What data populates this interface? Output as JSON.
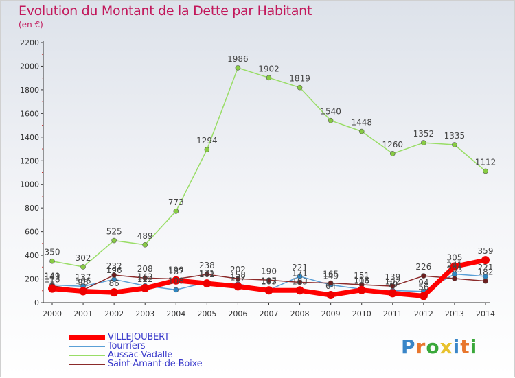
{
  "header": {
    "title": "Evolution du Montant de la Dette par Habitant",
    "subtitle": "(en €)"
  },
  "logo": {
    "text": "Proxiti",
    "colors": [
      "#3a86c8",
      "#e8772e",
      "#3aa83a",
      "#e8c22e",
      "#3a86c8",
      "#e8772e",
      "#3aa83a"
    ]
  },
  "chart_data": {
    "type": "line",
    "title": "Evolution du Montant de la Dette par Habitant",
    "subtitle": "(en €)",
    "xlabel": "",
    "ylabel": "",
    "x": [
      "2000",
      "2001",
      "2002",
      "2003",
      "2004",
      "2005",
      "2006",
      "2007",
      "2008",
      "2009",
      "2010",
      "2011",
      "2012",
      "2013",
      "2014"
    ],
    "ylim": [
      0,
      2200
    ],
    "yticks": [
      "0",
      "200",
      "400",
      "600",
      "800",
      "1000",
      "1200",
      "1400",
      "1600",
      "1800",
      "2000",
      "2200"
    ],
    "grid": false,
    "legend_position": "bottom-left",
    "series": [
      {
        "name": "VILLEJOUBERT",
        "color": "#ff0000",
        "markerColor": "#ee0000",
        "width": 7,
        "marker": 6,
        "values": [
          118,
          96,
          86,
          122,
          187,
          162,
          137,
          103,
          103,
          64,
          106,
          79,
          56,
          305,
          359
        ],
        "labels": [
          "118",
          "96",
          "86",
          "122",
          "187",
          "162",
          "137",
          "103",
          "103",
          "64",
          "106",
          "79",
          "56",
          "305",
          "359"
        ]
      },
      {
        "name": "Tourriers",
        "color": "#5a9fd6",
        "markerColor": "#2e86c1",
        "width": 1.5,
        "marker": 3.5,
        "values": [
          149,
          137,
          196,
          142,
          108,
          171,
          158,
          107,
          221,
          149,
          113,
          102,
          94,
          241,
          221
        ],
        "labels": [
          "149",
          "137",
          "196",
          "142",
          "108",
          "171",
          "158",
          "107",
          "221",
          "149",
          "113",
          "102",
          "94",
          "241",
          "221"
        ]
      },
      {
        "name": "Aussac-Vadalle",
        "color": "#99dd66",
        "markerColor": "#88cc44",
        "width": 1.5,
        "marker": 3.5,
        "values": [
          350,
          302,
          525,
          489,
          773,
          1294,
          1986,
          1902,
          1819,
          1540,
          1448,
          1260,
          1352,
          1335,
          1112
        ],
        "labels": [
          "350",
          "302",
          "525",
          "489",
          "773",
          "1294",
          "1986",
          "1902",
          "1819",
          "1540",
          "1448",
          "1260",
          "1352",
          "1335",
          "1112"
        ]
      },
      {
        "name": "Saint-Amant-de-Boixe",
        "color": "#8b2a2a",
        "markerColor": "#6b1f1f",
        "width": 1.5,
        "marker": 3.5,
        "values": [
          141,
          106,
          232,
          208,
          199,
          238,
          202,
          190,
          171,
          165,
          151,
          139,
          226,
          203,
          182
        ],
        "labels": [
          "141",
          "106",
          "232",
          "208",
          "199",
          "238",
          "202",
          "190",
          "171",
          "165",
          "151",
          "139",
          "226",
          "203",
          "182"
        ]
      }
    ]
  }
}
